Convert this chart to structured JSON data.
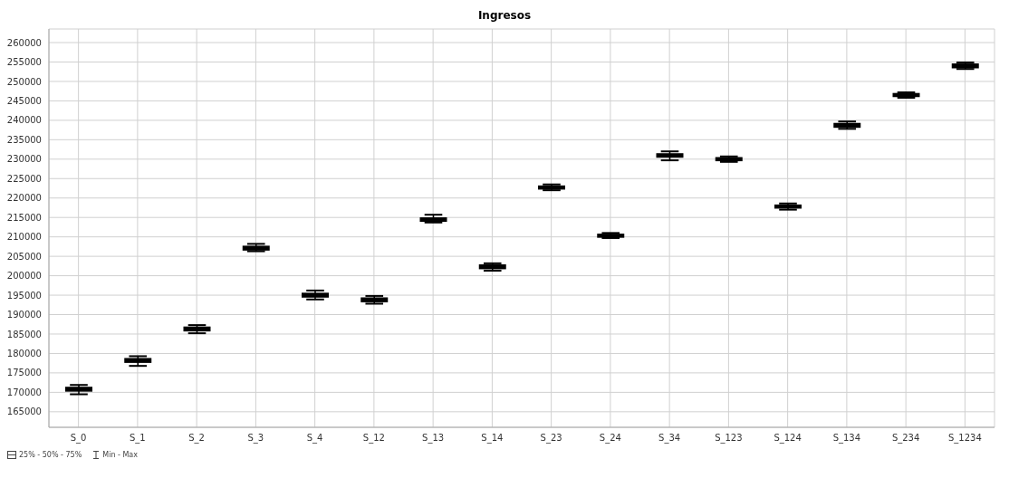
{
  "chart_data": {
    "type": "box",
    "title": "Ingresos",
    "categories": [
      "S_0",
      "S_1",
      "S_2",
      "S_3",
      "S_4",
      "S_12",
      "S_13",
      "S_14",
      "S_23",
      "S_24",
      "S_34",
      "S_123",
      "S_124",
      "S_134",
      "S_234",
      "S_1234"
    ],
    "boxes": [
      {
        "low": 169500,
        "q1": 170400,
        "median": 170800,
        "q3": 171200,
        "high": 171900
      },
      {
        "low": 176800,
        "q1": 177800,
        "median": 178200,
        "q3": 178600,
        "high": 179300
      },
      {
        "low": 185200,
        "q1": 185900,
        "median": 186300,
        "q3": 186700,
        "high": 187300
      },
      {
        "low": 206300,
        "q1": 206700,
        "median": 207100,
        "q3": 207500,
        "high": 208200
      },
      {
        "low": 193900,
        "q1": 194600,
        "median": 195000,
        "q3": 195400,
        "high": 196200
      },
      {
        "low": 192800,
        "q1": 193400,
        "median": 193800,
        "q3": 194200,
        "high": 194800
      },
      {
        "low": 213700,
        "q1": 214100,
        "median": 214500,
        "q3": 214800,
        "high": 215700
      },
      {
        "low": 201300,
        "q1": 201900,
        "median": 202300,
        "q3": 202700,
        "high": 203200
      },
      {
        "low": 222000,
        "q1": 222400,
        "median": 222700,
        "q3": 223000,
        "high": 223500
      },
      {
        "low": 209700,
        "q1": 210000,
        "median": 210300,
        "q3": 210600,
        "high": 211000
      },
      {
        "low": 229700,
        "q1": 230600,
        "median": 231000,
        "q3": 231300,
        "high": 232000
      },
      {
        "low": 229300,
        "q1": 229700,
        "median": 230000,
        "q3": 230300,
        "high": 230700
      },
      {
        "low": 217000,
        "q1": 217500,
        "median": 217800,
        "q3": 218100,
        "high": 218600
      },
      {
        "low": 237800,
        "q1": 238300,
        "median": 238700,
        "q3": 239100,
        "high": 239700
      },
      {
        "low": 245800,
        "q1": 246200,
        "median": 246500,
        "q3": 246800,
        "high": 247200
      },
      {
        "low": 253200,
        "q1": 253600,
        "median": 254000,
        "q3": 254400,
        "high": 254900
      }
    ],
    "color": "#000000",
    "ylim": [
      161000,
      263500
    ],
    "yticks": [
      165000,
      170000,
      175000,
      180000,
      185000,
      190000,
      195000,
      200000,
      205000,
      210000,
      215000,
      220000,
      225000,
      230000,
      235000,
      240000,
      245000,
      250000,
      255000,
      260000
    ],
    "grid": true,
    "annotations": [
      "25% - 50% - 75%",
      "Min - Max"
    ]
  }
}
